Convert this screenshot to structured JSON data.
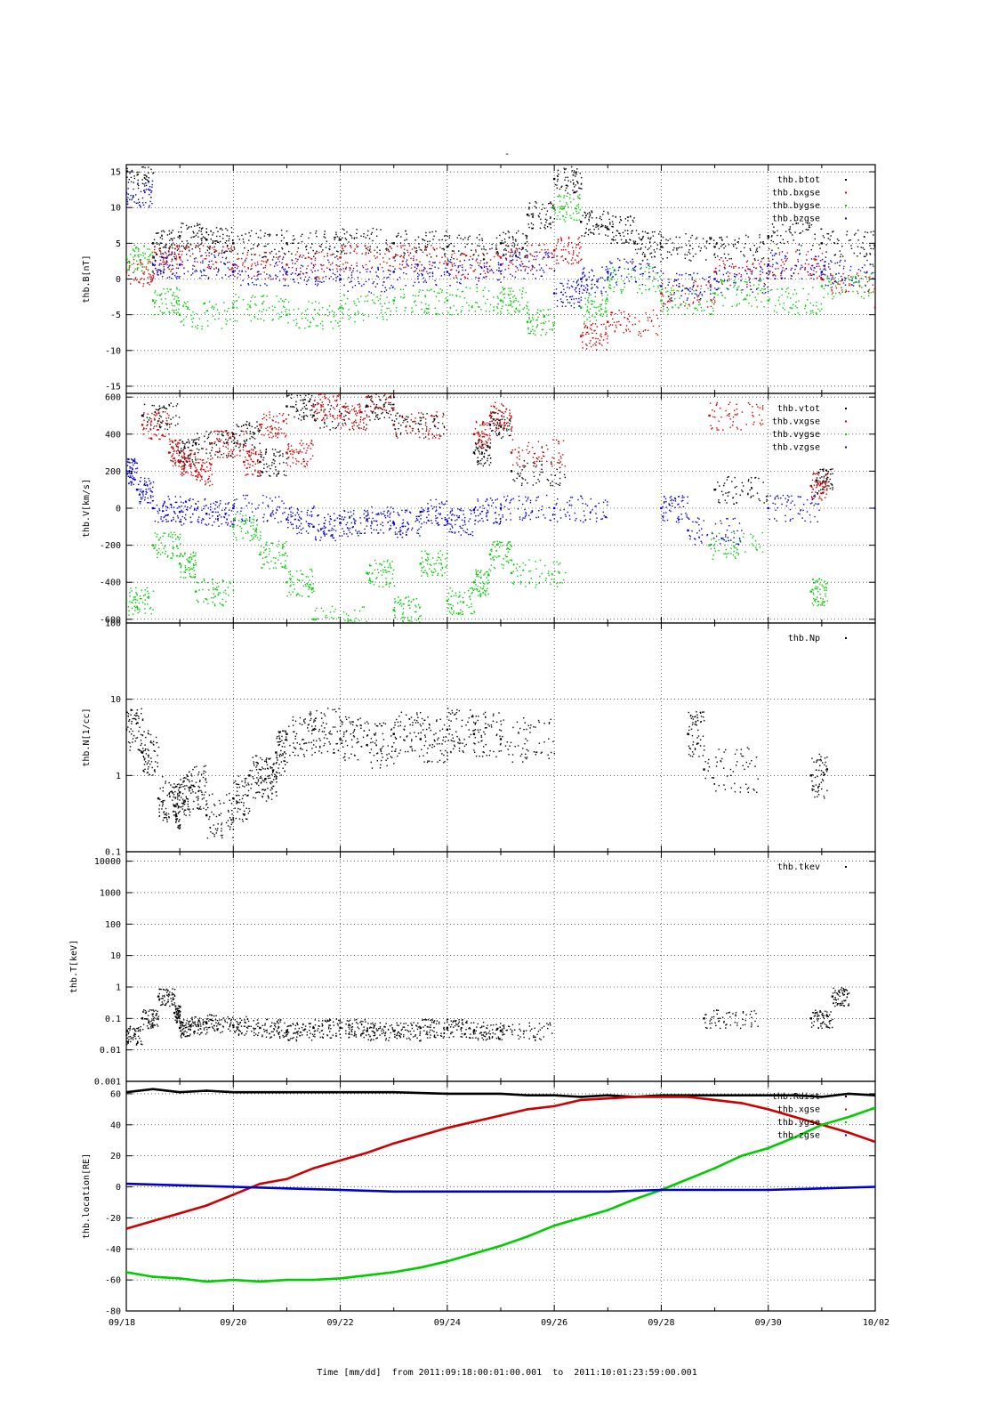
{
  "figure": {
    "title": "-"
  },
  "time_axis": {
    "start_day": "09/18",
    "tick_labels": [
      "09/18",
      "09/20",
      "09/22",
      "09/24",
      "09/26",
      "09/28",
      "09/30",
      "10/02"
    ],
    "caption": "Time [mm/dd]  from 2011:09:18:00:01:00.001  to  2011:10:01:23:59:00.001"
  },
  "colors": {
    "black": "#000000",
    "red": "#cc0000",
    "green": "#00cc00",
    "blue": "#0000cc"
  },
  "chart_data": [
    {
      "type": "scatter",
      "ylabel": "thb.B[nT]",
      "yscale": "linear",
      "ylim": [
        -16,
        16
      ],
      "yticks": [
        -15,
        -10,
        -5,
        0,
        5,
        10,
        15
      ],
      "grid": true,
      "legend_position": "top-right",
      "series": [
        {
          "name": "thb.btot",
          "color": "#000000",
          "x": [
            0.0,
            0.5,
            1.0,
            1.5,
            2.0,
            3.0,
            4.0,
            5.0,
            6.0,
            7.0,
            7.5,
            8.0,
            8.5,
            9.0,
            9.5,
            10.0,
            11.0,
            12.0,
            13.0,
            14.0
          ],
          "y": [
            15,
            5,
            6,
            5.5,
            5,
            5,
            5.5,
            5,
            4.5,
            5,
            9,
            14,
            8,
            7,
            5,
            4.5,
            4.5,
            6,
            5,
            4.5
          ]
        },
        {
          "name": "thb.bxgse",
          "color": "#cc0000",
          "x": [
            0.0,
            0.5,
            1.0,
            2.0,
            3.0,
            4.0,
            5.0,
            6.0,
            7.0,
            8.0,
            8.5,
            9.0,
            10.0,
            11.0,
            12.0,
            13.0,
            14.0
          ],
          "y": [
            1,
            3,
            3,
            2,
            2,
            3,
            3,
            2,
            3,
            4,
            -8,
            -6,
            -2,
            1,
            2,
            0,
            -4
          ]
        },
        {
          "name": "thb.bygse",
          "color": "#00cc00",
          "x": [
            0.0,
            0.5,
            1.0,
            2.0,
            3.0,
            4.0,
            5.0,
            6.0,
            7.0,
            7.5,
            8.0,
            8.5,
            9.0,
            10.0,
            11.0,
            12.0,
            13.0,
            14.0
          ],
          "y": [
            3,
            -3,
            -5,
            -4,
            -5,
            -4,
            -3,
            -3,
            -3,
            -6,
            10,
            -4,
            0,
            -3,
            -2,
            -3,
            -1,
            2
          ]
        },
        {
          "name": "thb.bzgse",
          "color": "#0000cc",
          "x": [
            0.0,
            0.5,
            1.0,
            2.0,
            3.0,
            4.0,
            5.0,
            6.0,
            7.0,
            8.0,
            8.5,
            9.0,
            10.0,
            11.0,
            12.0,
            13.0,
            14.0
          ],
          "y": [
            12,
            2,
            2,
            1,
            1,
            0,
            1,
            1,
            2,
            -2,
            0,
            1,
            -1,
            0,
            2,
            1,
            0
          ]
        }
      ]
    },
    {
      "type": "scatter",
      "ylabel": "thb.V[km/s]",
      "yscale": "linear",
      "ylim": [
        -620,
        620
      ],
      "yticks": [
        -600,
        -400,
        -200,
        0,
        200,
        400,
        600
      ],
      "grid": true,
      "legend_position": "top-right",
      "series": [
        {
          "name": "thb.vtot",
          "color": "#000000",
          "x": [
            0.3,
            1.0,
            1.3,
            2.0,
            2.5,
            3.0,
            3.5,
            4.5,
            5.0,
            6.5,
            6.8,
            7.2,
            11.0,
            12.9
          ],
          "y": [
            500,
            300,
            350,
            400,
            250,
            550,
            500,
            550,
            450,
            300,
            450,
            200,
            100,
            150
          ]
        },
        {
          "name": "thb.vxgse",
          "color": "#cc0000",
          "x": [
            0.3,
            0.8,
            1.0,
            1.3,
            1.6,
            2.2,
            2.5,
            3.0,
            3.5,
            4.0,
            4.5,
            5.0,
            6.5,
            6.8,
            7.2,
            10.9,
            12.8
          ],
          "y": [
            450,
            300,
            250,
            200,
            350,
            250,
            450,
            300,
            550,
            500,
            600,
            450,
            400,
            500,
            300,
            500,
            120
          ]
        },
        {
          "name": "thb.vygse",
          "color": "#00cc00",
          "x": [
            0.0,
            0.5,
            1.0,
            1.3,
            2.0,
            2.5,
            3.0,
            3.5,
            4.5,
            5.0,
            5.5,
            6.0,
            6.5,
            6.8,
            7.2,
            10.9,
            12.8
          ],
          "y": [
            -500,
            -200,
            -300,
            -450,
            -100,
            -250,
            -400,
            -600,
            -350,
            -550,
            -300,
            -500,
            -400,
            -250,
            -350,
            -200,
            -450
          ]
        },
        {
          "name": "thb.vzgse",
          "color": "#0000cc",
          "x": [
            0.0,
            0.2,
            0.5,
            1.0,
            1.5,
            2.0,
            3.0,
            3.5,
            4.0,
            4.5,
            5.0,
            5.5,
            6.0,
            6.5,
            7.0,
            8.0,
            10.0,
            10.5,
            12.0,
            14.0
          ],
          "y": [
            200,
            100,
            0,
            -20,
            -30,
            0,
            -60,
            -100,
            -80,
            -60,
            -80,
            -20,
            -70,
            -10,
            0,
            0,
            0,
            -120,
            0,
            0
          ]
        }
      ]
    },
    {
      "type": "scatter",
      "ylabel": "thb.N[1/cc]",
      "yscale": "log",
      "ylim": [
        0.1,
        100
      ],
      "yticks": [
        0.1,
        1,
        10,
        100
      ],
      "ytick_labels": [
        "0.1",
        "1",
        "10",
        "100"
      ],
      "grid": true,
      "legend_position": "top-right",
      "series": [
        {
          "name": "thb.Np",
          "color": "#000000",
          "x": [
            0.0,
            0.3,
            0.6,
            0.9,
            1.0,
            1.2,
            1.5,
            2.0,
            2.3,
            2.6,
            2.8,
            3.0,
            3.5,
            4.0,
            4.5,
            5.0,
            5.5,
            6.0,
            6.5,
            7.0,
            10.5,
            10.8,
            12.8
          ],
          "y": [
            4,
            2,
            0.5,
            0.4,
            0.6,
            0.7,
            0.3,
            0.5,
            1,
            0.9,
            2,
            3.5,
            4,
            3,
            2.5,
            3.5,
            3,
            4,
            3.5,
            3,
            3.5,
            1.2,
            1
          ]
        }
      ]
    },
    {
      "type": "scatter",
      "ylabel": "thb.T[keV]",
      "yscale": "log",
      "ylim": [
        0.001,
        20000
      ],
      "yticks": [
        0.001,
        0.01,
        0.1,
        1,
        10,
        100,
        1000,
        10000
      ],
      "ytick_labels": [
        "0.001",
        "0.01",
        "0.1",
        "1",
        "10",
        "100",
        "1000",
        "10000"
      ],
      "grid": true,
      "legend_position": "top-right",
      "series": [
        {
          "name": "thb.tkev",
          "color": "#000000",
          "x": [
            0.0,
            0.3,
            0.6,
            0.9,
            1.0,
            1.2,
            1.5,
            2.0,
            2.5,
            3.0,
            3.5,
            4.0,
            4.5,
            5.0,
            5.5,
            6.0,
            6.5,
            7.0,
            10.8,
            12.8,
            13.2
          ],
          "y": [
            0.03,
            0.1,
            0.5,
            0.15,
            0.05,
            0.06,
            0.07,
            0.06,
            0.05,
            0.04,
            0.05,
            0.05,
            0.04,
            0.04,
            0.05,
            0.05,
            0.04,
            0.04,
            0.1,
            0.1,
            0.5
          ]
        }
      ]
    },
    {
      "type": "line",
      "ylabel": "thb.location[RE]",
      "yscale": "linear",
      "ylim": [
        -80,
        68
      ],
      "yticks": [
        -80,
        -60,
        -40,
        -20,
        0,
        20,
        40,
        60
      ],
      "grid": true,
      "legend_position": "top-right",
      "series": [
        {
          "name": "thb.Rdist",
          "color": "#000000",
          "x": [
            0,
            0.5,
            1,
            1.5,
            2,
            3,
            4,
            5,
            6,
            7,
            7.5,
            8,
            8.5,
            9,
            9.5,
            10,
            10.5,
            11,
            11.5,
            12,
            12.5,
            13,
            13.5,
            14
          ],
          "y": [
            61,
            63,
            61,
            62,
            61,
            61,
            61,
            61,
            60,
            60,
            59,
            59,
            58,
            59,
            58,
            59,
            59,
            59,
            59,
            59,
            59,
            58,
            60,
            59
          ]
        },
        {
          "name": "thb.xgse",
          "color": "#cc0000",
          "x": [
            0,
            0.5,
            1,
            1.5,
            2,
            2.5,
            3,
            3.5,
            4,
            4.5,
            5,
            5.5,
            6,
            6.5,
            7,
            7.5,
            8,
            8.5,
            9,
            9.5,
            10,
            10.5,
            11,
            11.5,
            12,
            12.5,
            13,
            13.5,
            14
          ],
          "y": [
            -27,
            -22,
            -17,
            -12,
            -5,
            2,
            5,
            12,
            17,
            22,
            28,
            33,
            38,
            42,
            46,
            50,
            52,
            56,
            57,
            58,
            58,
            58,
            56,
            54,
            50,
            45,
            40,
            35,
            29
          ]
        },
        {
          "name": "thb.ygse",
          "color": "#00cc00",
          "x": [
            0,
            0.5,
            1,
            1.5,
            2,
            2.5,
            3,
            3.5,
            4,
            4.5,
            5,
            5.5,
            6,
            6.5,
            7,
            7.5,
            8,
            8.5,
            9,
            9.5,
            10,
            10.5,
            11,
            11.5,
            12,
            12.5,
            13,
            13.5,
            14
          ],
          "y": [
            -55,
            -58,
            -59,
            -61,
            -60,
            -61,
            -60,
            -60,
            -59,
            -57,
            -55,
            -52,
            -48,
            -43,
            -38,
            -32,
            -25,
            -20,
            -15,
            -8,
            -2,
            5,
            12,
            20,
            25,
            32,
            40,
            45,
            51
          ]
        },
        {
          "name": "thb.zgse",
          "color": "#0000cc",
          "x": [
            0,
            1,
            2,
            3,
            4,
            5,
            6,
            7,
            8,
            9,
            10,
            11,
            12,
            13,
            14
          ],
          "y": [
            2,
            1,
            0,
            -1,
            -2,
            -3,
            -3,
            -3,
            -3,
            -3,
            -2,
            -2,
            -2,
            -1,
            0
          ]
        }
      ]
    }
  ]
}
